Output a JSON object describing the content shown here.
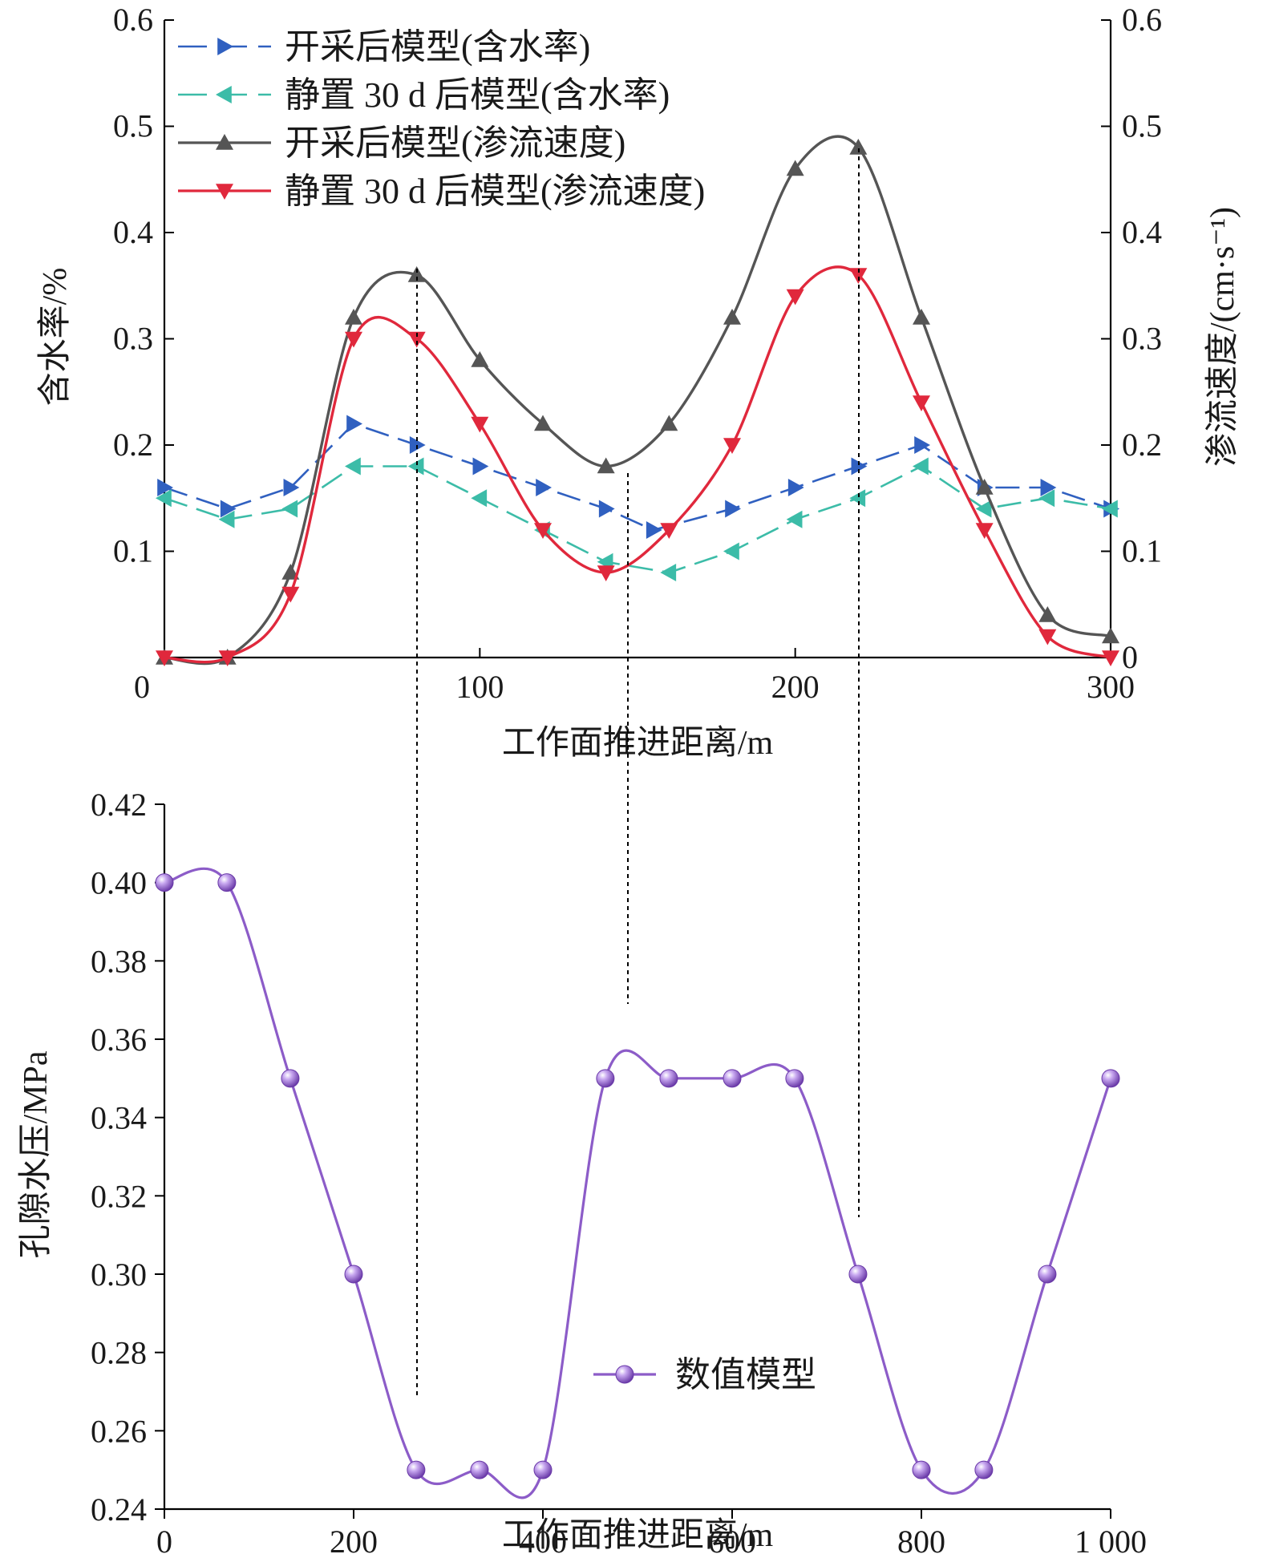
{
  "chart_data": [
    {
      "type": "line",
      "xlabel": "工作面推进距离/m",
      "ylabel_left": "含水率/%",
      "ylabel_right": "渗流速度/(cm·s⁻¹)",
      "xlim": [
        0,
        300
      ],
      "xticks": [
        "0",
        "100",
        "200",
        "300"
      ],
      "ylim": [
        0,
        0.6
      ],
      "yticks": [
        "0",
        "0.1",
        "0.2",
        "0.3",
        "0.4",
        "0.5",
        "0.6"
      ],
      "series": [
        {
          "name": "开采后模型(含水率)",
          "color": "#3060c0",
          "style": "dashed",
          "marker": "triangle-right",
          "points": [
            [
              0,
              0.16
            ],
            [
              20,
              0.14
            ],
            [
              40,
              0.16
            ],
            [
              60,
              0.22
            ],
            [
              80,
              0.2
            ],
            [
              100,
              0.18
            ],
            [
              120,
              0.16
            ],
            [
              140,
              0.14
            ],
            [
              155,
              0.12
            ],
            [
              180,
              0.14
            ],
            [
              200,
              0.16
            ],
            [
              220,
              0.18
            ],
            [
              240,
              0.2
            ],
            [
              260,
              0.16
            ],
            [
              280,
              0.16
            ],
            [
              300,
              0.14
            ]
          ]
        },
        {
          "name": "静置 30 d 后模型(含水率)",
          "color": "#3cbca8",
          "style": "dashed",
          "marker": "triangle-left",
          "points": [
            [
              0,
              0.15
            ],
            [
              20,
              0.13
            ],
            [
              40,
              0.14
            ],
            [
              60,
              0.18
            ],
            [
              80,
              0.18
            ],
            [
              100,
              0.15
            ],
            [
              120,
              0.12
            ],
            [
              140,
              0.09
            ],
            [
              160,
              0.08
            ],
            [
              180,
              0.1
            ],
            [
              200,
              0.13
            ],
            [
              220,
              0.15
            ],
            [
              240,
              0.18
            ],
            [
              260,
              0.14
            ],
            [
              280,
              0.15
            ],
            [
              300,
              0.14
            ]
          ]
        },
        {
          "name": "开采后模型(渗流速度)",
          "color": "#555555",
          "style": "solid",
          "marker": "triangle-up",
          "points": [
            [
              0,
              0.0
            ],
            [
              20,
              0.0
            ],
            [
              40,
              0.08
            ],
            [
              60,
              0.32
            ],
            [
              80,
              0.36
            ],
            [
              100,
              0.28
            ],
            [
              120,
              0.22
            ],
            [
              140,
              0.18
            ],
            [
              160,
              0.22
            ],
            [
              180,
              0.32
            ],
            [
              200,
              0.46
            ],
            [
              220,
              0.48
            ],
            [
              240,
              0.32
            ],
            [
              260,
              0.16
            ],
            [
              280,
              0.04
            ],
            [
              300,
              0.02
            ]
          ]
        },
        {
          "name": "静置 30 d 后模型(渗流速度)",
          "color": "#e0283c",
          "style": "solid",
          "marker": "triangle-down",
          "points": [
            [
              0,
              0.0
            ],
            [
              20,
              0.0
            ],
            [
              40,
              0.06
            ],
            [
              60,
              0.3
            ],
            [
              80,
              0.3
            ],
            [
              100,
              0.22
            ],
            [
              120,
              0.12
            ],
            [
              140,
              0.08
            ],
            [
              160,
              0.12
            ],
            [
              180,
              0.2
            ],
            [
              200,
              0.34
            ],
            [
              220,
              0.36
            ],
            [
              240,
              0.24
            ],
            [
              260,
              0.12
            ],
            [
              280,
              0.02
            ],
            [
              300,
              0.0
            ]
          ]
        }
      ]
    },
    {
      "type": "line",
      "xlabel": "工作面推进距离/m",
      "ylabel": "孔隙水压/MPa",
      "xlim": [
        0,
        1000
      ],
      "xticks": [
        "0",
        "200",
        "400",
        "600",
        "800",
        "1 000"
      ],
      "ylim": [
        0.24,
        0.42
      ],
      "yticks": [
        "0.24",
        "0.26",
        "0.28",
        "0.30",
        "0.32",
        "0.34",
        "0.36",
        "0.38",
        "0.40",
        "0.42"
      ],
      "series": [
        {
          "name": "数值模型",
          "color": "#8c5cc8",
          "style": "solid",
          "marker": "sphere",
          "points": [
            [
              0,
              0.4
            ],
            [
              66,
              0.4
            ],
            [
              133,
              0.35
            ],
            [
              200,
              0.3
            ],
            [
              266,
              0.25
            ],
            [
              333,
              0.25
            ],
            [
              400,
              0.25
            ],
            [
              466,
              0.35
            ],
            [
              533,
              0.35
            ],
            [
              600,
              0.35
            ],
            [
              666,
              0.35
            ],
            [
              733,
              0.3
            ],
            [
              800,
              0.25
            ],
            [
              866,
              0.25
            ],
            [
              933,
              0.3
            ],
            [
              1000,
              0.35
            ]
          ]
        }
      ]
    }
  ]
}
